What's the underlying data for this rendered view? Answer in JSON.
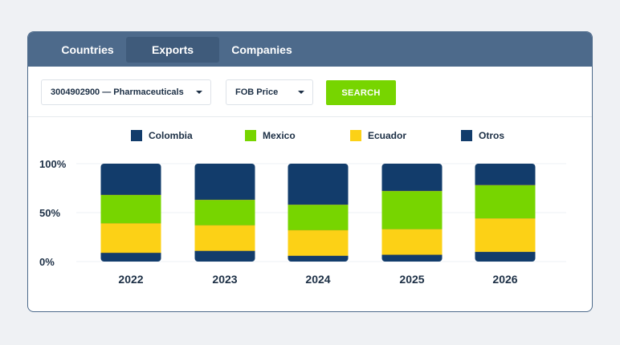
{
  "tabs": [
    {
      "label": "Countries",
      "active": false
    },
    {
      "label": "Exports",
      "active": true
    },
    {
      "label": "Companies",
      "active": false
    }
  ],
  "filters": {
    "product_select": "3004902900 — Pharmaceuticals",
    "metric_select": "FOB Price",
    "search_label": "SEARCH"
  },
  "colors": {
    "Colombia": "#123c6b",
    "Mexico": "#77d500",
    "Ecuador": "#fcd116",
    "Otros": "#123c6b"
  },
  "chart_data": {
    "type": "bar",
    "stacked": true,
    "categories": [
      "2022",
      "2023",
      "2024",
      "2025",
      "2026"
    ],
    "series": [
      {
        "name": "Ecuador",
        "values": [
          30,
          26,
          26,
          26,
          34
        ]
      },
      {
        "name": "Mexico",
        "values": [
          29,
          26,
          26,
          39,
          34
        ]
      },
      {
        "name": "Colombia",
        "values": [
          32,
          37,
          42,
          28,
          22
        ]
      },
      {
        "name": "Otros",
        "values": [
          9,
          11,
          6,
          7,
          10
        ]
      }
    ],
    "stack_order_bottom_to_top": [
      "Otros",
      "Ecuador",
      "Mexico",
      "Colombia"
    ],
    "legend_order": [
      "Colombia",
      "Mexico",
      "Ecuador",
      "Otros"
    ],
    "y_ticks": [
      "100%",
      "50%",
      "0%"
    ],
    "ylim": [
      0,
      100
    ],
    "title": "",
    "xlabel": "",
    "ylabel": "",
    "legend_position": "top",
    "grid": true
  }
}
